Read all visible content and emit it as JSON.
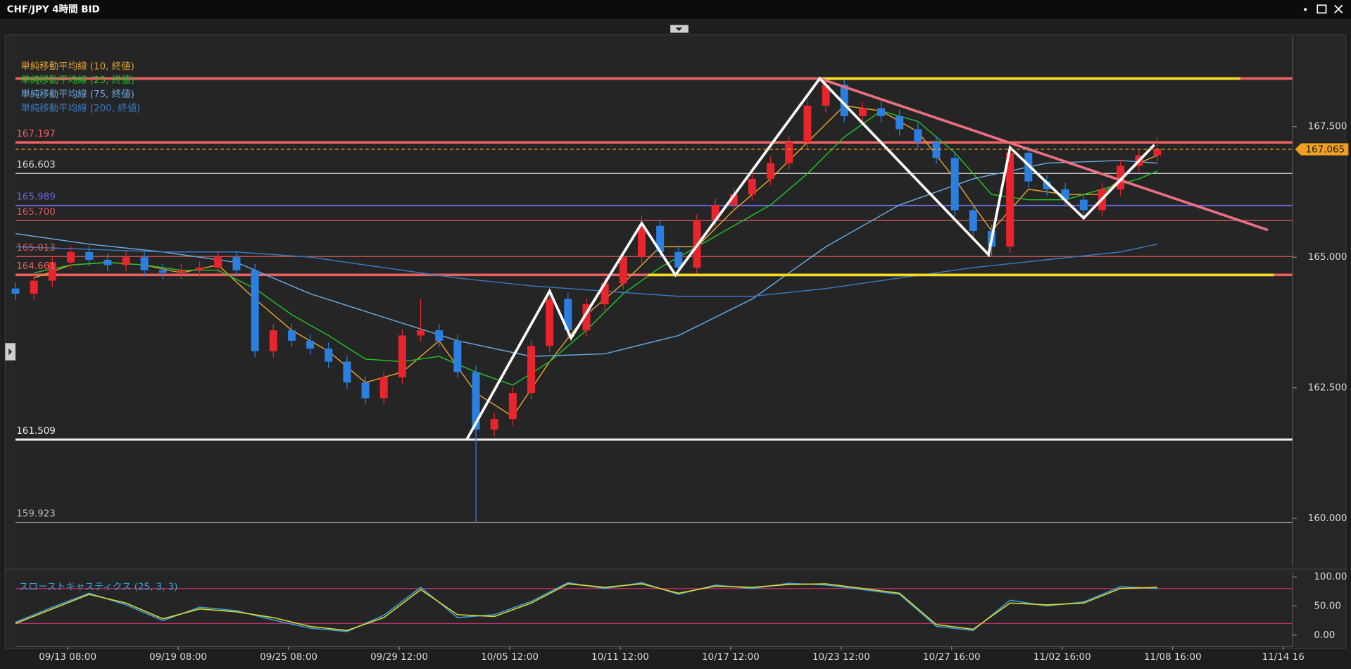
{
  "chart_data": [
    {
      "type": "candlestick",
      "title": "CHF/JPY 4時間 BID",
      "x": [
        0,
        6,
        12,
        18,
        24,
        30,
        36,
        42,
        48,
        54,
        60,
        66,
        72,
        78,
        84,
        90,
        96,
        102,
        108,
        114,
        120,
        126,
        132,
        138,
        144,
        150,
        156,
        162,
        168,
        174,
        180,
        186,
        192,
        198,
        204,
        210,
        216,
        222,
        228,
        234,
        240,
        246,
        252,
        258,
        264,
        270,
        276,
        282,
        288,
        294,
        300,
        306,
        312,
        318,
        324,
        330,
        336,
        342,
        348,
        354,
        360,
        366,
        372
      ],
      "open": [
        164.4,
        164.3,
        164.55,
        164.9,
        165.1,
        164.95,
        164.85,
        165.0,
        164.75,
        164.7,
        164.75,
        164.8,
        165.0,
        164.75,
        163.2,
        163.6,
        163.4,
        163.25,
        163.0,
        162.6,
        162.3,
        162.7,
        163.5,
        163.6,
        163.4,
        162.8,
        161.7,
        161.9,
        162.4,
        163.3,
        164.2,
        163.6,
        164.1,
        164.5,
        165.0,
        165.6,
        165.1,
        164.8,
        165.7,
        166.0,
        166.2,
        166.5,
        166.8,
        167.2,
        167.9,
        168.3,
        167.7,
        167.85,
        167.7,
        167.45,
        167.2,
        166.9,
        165.9,
        165.5,
        165.2,
        167.0,
        166.45,
        166.3,
        166.1,
        165.9,
        166.3,
        166.75,
        166.95
      ],
      "high": [
        164.52,
        164.67,
        165.02,
        165.22,
        165.22,
        165.07,
        165.12,
        165.12,
        164.87,
        164.87,
        164.92,
        165.12,
        165.12,
        164.87,
        163.72,
        163.72,
        163.52,
        163.37,
        163.12,
        162.72,
        162.82,
        163.62,
        164.2,
        163.72,
        163.52,
        162.92,
        162.02,
        162.52,
        163.42,
        164.32,
        164.32,
        164.22,
        164.62,
        165.12,
        165.8,
        165.72,
        165.22,
        165.82,
        166.12,
        166.32,
        166.62,
        166.92,
        167.32,
        168.02,
        168.42,
        168.42,
        167.97,
        167.97,
        167.82,
        167.57,
        167.32,
        167.02,
        166.02,
        165.62,
        167.12,
        167.12,
        166.57,
        166.42,
        166.22,
        166.42,
        166.87,
        167.07,
        167.3
      ],
      "low": [
        164.18,
        164.18,
        164.43,
        164.78,
        164.83,
        164.73,
        164.73,
        164.63,
        164.58,
        164.58,
        164.63,
        164.68,
        164.63,
        163.08,
        163.08,
        163.28,
        163.13,
        162.88,
        162.48,
        162.18,
        162.18,
        162.58,
        163.38,
        163.28,
        162.68,
        159.923,
        161.58,
        161.78,
        162.28,
        163.18,
        163.48,
        163.48,
        163.98,
        164.38,
        164.88,
        164.98,
        164.66,
        164.68,
        165.58,
        165.88,
        166.08,
        166.38,
        166.68,
        167.08,
        167.78,
        167.58,
        167.58,
        167.58,
        167.33,
        167.08,
        166.78,
        165.78,
        165.38,
        165.01,
        165.08,
        166.33,
        166.18,
        165.98,
        165.76,
        165.78,
        166.18,
        166.63,
        166.83
      ],
      "close": [
        164.3,
        164.55,
        164.9,
        165.1,
        164.95,
        164.85,
        165.0,
        164.75,
        164.7,
        164.75,
        164.8,
        165.0,
        164.75,
        163.2,
        163.6,
        163.4,
        163.25,
        163.0,
        162.6,
        162.3,
        162.7,
        163.5,
        163.6,
        163.4,
        162.8,
        161.7,
        161.9,
        162.4,
        163.3,
        164.2,
        163.6,
        164.1,
        164.5,
        165.0,
        165.6,
        165.1,
        164.8,
        165.7,
        166.0,
        166.2,
        166.5,
        166.8,
        167.2,
        167.9,
        168.3,
        167.7,
        167.85,
        167.7,
        167.45,
        167.2,
        166.9,
        165.9,
        165.5,
        165.2,
        167.0,
        166.45,
        166.3,
        166.1,
        165.9,
        166.3,
        166.75,
        166.95,
        167.07
      ],
      "up_color": "#e8242c",
      "down_color": "#2a7fe0",
      "series": [
        {
          "name": "単純移動平均線 (10, 終値)",
          "color": "#e0a030",
          "x": [
            6,
            18,
            30,
            42,
            54,
            66,
            78,
            90,
            102,
            114,
            126,
            138,
            150,
            162,
            174,
            186,
            198,
            210,
            222,
            234,
            246,
            258,
            270,
            282,
            294,
            306,
            318,
            330,
            342,
            354,
            366,
            372
          ],
          "values": [
            164.6,
            164.85,
            164.9,
            164.85,
            164.7,
            164.85,
            164.2,
            163.6,
            163.2,
            162.6,
            162.8,
            163.4,
            162.4,
            161.95,
            163.0,
            163.9,
            164.5,
            165.2,
            165.2,
            165.9,
            166.5,
            167.2,
            167.9,
            167.8,
            167.4,
            166.5,
            165.5,
            166.3,
            166.2,
            166.2,
            166.8,
            166.95
          ]
        },
        {
          "name": "単純移動平均線 (25, 終値)",
          "color": "#22c02a",
          "x": [
            6,
            18,
            30,
            42,
            54,
            66,
            78,
            90,
            102,
            114,
            126,
            138,
            150,
            162,
            174,
            186,
            198,
            210,
            222,
            234,
            246,
            258,
            270,
            282,
            294,
            306,
            318,
            330,
            342,
            354,
            366,
            372
          ],
          "values": [
            164.7,
            164.85,
            164.9,
            164.85,
            164.75,
            164.75,
            164.4,
            163.9,
            163.5,
            163.05,
            163.0,
            163.1,
            162.8,
            162.55,
            163.0,
            163.6,
            164.3,
            164.8,
            165.2,
            165.6,
            166.0,
            166.6,
            167.3,
            167.8,
            167.6,
            167.0,
            166.2,
            166.1,
            166.1,
            166.3,
            166.5,
            166.65
          ]
        },
        {
          "name": "単純移動平均線 (75, 終値)",
          "color": "#6aa8e0",
          "x": [
            0,
            24,
            48,
            72,
            96,
            120,
            144,
            168,
            192,
            216,
            240,
            264,
            288,
            312,
            336,
            360,
            372
          ],
          "values": [
            165.45,
            165.25,
            165.1,
            164.9,
            164.3,
            163.85,
            163.4,
            163.1,
            163.15,
            163.5,
            164.2,
            165.2,
            166.0,
            166.5,
            166.8,
            166.85,
            166.8
          ]
        },
        {
          "name": "単純移動平均線 (200, 終値)",
          "color": "#3a78c0",
          "x": [
            0,
            24,
            48,
            72,
            96,
            120,
            144,
            168,
            192,
            216,
            240,
            264,
            288,
            312,
            336,
            360,
            372
          ],
          "values": [
            165.2,
            165.15,
            165.1,
            165.1,
            165.0,
            164.8,
            164.6,
            164.45,
            164.35,
            164.25,
            164.25,
            164.4,
            164.6,
            164.8,
            164.95,
            165.1,
            165.25
          ]
        }
      ],
      "levels": [
        {
          "value": 168.42,
          "color": "#e86060"
        },
        {
          "value": 167.197,
          "label": "167.197",
          "color": "#e86060"
        },
        {
          "value": 166.603,
          "label": "166.603",
          "color": "#d8d8d8"
        },
        {
          "value": 165.989,
          "label": "165.989",
          "color": "#6a6ae0"
        },
        {
          "value": 165.7,
          "label": "165.700",
          "color": "#d85a5a"
        },
        {
          "value": 165.013,
          "label": "165.013",
          "color": "#d85a5a"
        },
        {
          "value": 164.661,
          "label": "164.661",
          "color": "#e86060"
        },
        {
          "value": 161.509,
          "label": "161.509",
          "color": "#f0f0f0"
        },
        {
          "value": 159.923,
          "label": "159.923",
          "color": "#bbbbbb"
        }
      ],
      "current_price": {
        "value": 167.065,
        "label": "167.065",
        "color": "#f0a020"
      },
      "drawings": [
        {
          "color": "#f0e020",
          "x": [
            262,
            399
          ],
          "y": [
            168.42,
            168.42
          ]
        },
        {
          "color": "#f0e020",
          "x": [
            206,
            410
          ],
          "y": [
            164.66,
            164.66
          ]
        },
        {
          "color": "#e87080",
          "x": [
            262,
            408
          ],
          "y": [
            168.42,
            165.52
          ]
        },
        {
          "color": "#ffffff",
          "x": [
            147,
            174,
            181,
            204,
            215,
            262,
            317,
            324,
            348,
            371
          ],
          "y": [
            161.51,
            164.35,
            163.45,
            165.65,
            164.66,
            168.42,
            165.05,
            167.1,
            165.75,
            167.15
          ]
        }
      ],
      "xlim": [
        0,
        416
      ],
      "ylim": [
        159.08,
        169.23
      ],
      "yticks": [
        {
          "value": 167.5,
          "label": "167.500"
        },
        {
          "value": 165,
          "label": "165.000"
        },
        {
          "value": 162.5,
          "label": "162.500"
        },
        {
          "value": 160,
          "label": "160.000"
        }
      ]
    },
    {
      "type": "line",
      "title": "スローストキャスティクス (25, 3, 3)",
      "x": [
        0,
        12,
        24,
        36,
        48,
        60,
        72,
        84,
        96,
        108,
        120,
        132,
        144,
        156,
        168,
        180,
        192,
        204,
        216,
        228,
        240,
        252,
        264,
        276,
        288,
        300,
        312,
        324,
        336,
        348,
        360,
        372
      ],
      "series": [
        {
          "color": "#3aa0d8",
          "values": [
            22,
            48,
            72,
            52,
            25,
            48,
            42,
            26,
            12,
            6,
            34,
            82,
            30,
            35,
            58,
            90,
            80,
            90,
            70,
            86,
            80,
            89,
            86,
            78,
            70,
            15,
            8,
            60,
            50,
            57,
            83,
            80
          ]
        },
        {
          "color": "#d8d830",
          "values": [
            20,
            45,
            70,
            55,
            28,
            45,
            40,
            30,
            15,
            8,
            30,
            78,
            35,
            32,
            55,
            88,
            82,
            88,
            72,
            84,
            82,
            87,
            88,
            80,
            72,
            18,
            10,
            55,
            52,
            55,
            80,
            82
          ]
        }
      ],
      "levels": [
        80,
        20
      ],
      "level_color": "#c0306a",
      "xlim": [
        0,
        416
      ],
      "ylim": [
        -19.7,
        107.6
      ],
      "yticks": [
        {
          "value": 100,
          "label": "100.00"
        },
        {
          "value": 50,
          "label": "50.00"
        },
        {
          "value": 0,
          "label": "0.00"
        }
      ],
      "xticks": [
        {
          "value": 17,
          "label": "09/13 08:00"
        },
        {
          "value": 53,
          "label": "09/19 08:00"
        },
        {
          "value": 89,
          "label": "09/25 08:00"
        },
        {
          "value": 125,
          "label": "09/29 12:00"
        },
        {
          "value": 161,
          "label": "10/05 12:00"
        },
        {
          "value": 197,
          "label": "10/11 12:00"
        },
        {
          "value": 233,
          "label": "10/17 12:00"
        },
        {
          "value": 269,
          "label": "10/23 12:00"
        },
        {
          "value": 305,
          "label": "10/27 16:00"
        },
        {
          "value": 341,
          "label": "11/02 16:00"
        },
        {
          "value": 377,
          "label": "11/08 16:00"
        },
        {
          "value": 413,
          "label": "11/14 16"
        }
      ]
    }
  ]
}
